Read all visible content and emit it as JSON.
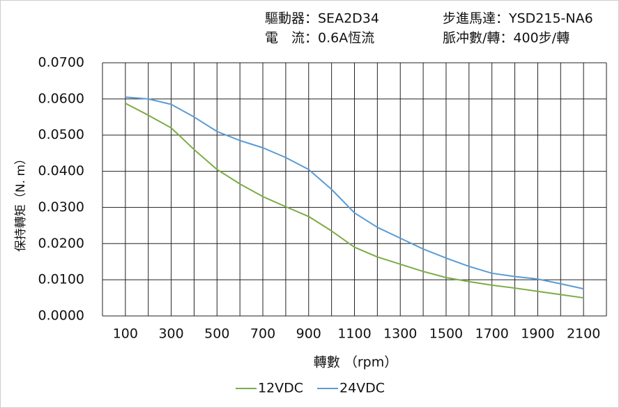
{
  "chart_data": {
    "type": "line",
    "annotations": [
      "驅動器：SEA2D34",
      "步進馬達：YSD215-NA6",
      "電　流：0.6A恆流",
      "脈冲數/轉：400步/轉"
    ],
    "x_label": "轉數 （rpm）",
    "y_label": "保持轉矩（N. m）",
    "x": [
      100,
      200,
      300,
      400,
      500,
      600,
      700,
      800,
      900,
      1000,
      1100,
      1200,
      1300,
      1400,
      1500,
      1600,
      1700,
      1800,
      1900,
      2000,
      2100
    ],
    "series": [
      {
        "name": "12VDC",
        "color": "#7cac45",
        "values": [
          0.0588,
          0.0555,
          0.052,
          0.046,
          0.0405,
          0.0365,
          0.033,
          0.0302,
          0.0275,
          0.0235,
          0.019,
          0.0163,
          0.0143,
          0.0123,
          0.0106,
          0.0095,
          0.0085,
          0.0077,
          0.0068,
          0.0059,
          0.005
        ]
      },
      {
        "name": "24VDC",
        "color": "#5b9bd5",
        "values": [
          0.0605,
          0.06,
          0.0585,
          0.055,
          0.051,
          0.0485,
          0.0465,
          0.0438,
          0.0405,
          0.035,
          0.0285,
          0.0245,
          0.0215,
          0.0185,
          0.016,
          0.0137,
          0.0118,
          0.0109,
          0.0102,
          0.0089,
          0.0075
        ]
      }
    ],
    "xlim": [
      0,
      2200
    ],
    "xticks": [
      100,
      300,
      500,
      700,
      900,
      1100,
      1300,
      1500,
      1700,
      1900,
      2100
    ],
    "xgrid_step": 100,
    "ylim": [
      0,
      0.07
    ],
    "yticks": [
      {
        "value": 0,
        "label": "0.0000"
      },
      {
        "value": 0.01,
        "label": "0.0100"
      },
      {
        "value": 0.02,
        "label": "0.0200"
      },
      {
        "value": 0.03,
        "label": "0.0300"
      },
      {
        "value": 0.04,
        "label": "0.0400"
      },
      {
        "value": 0.05,
        "label": "0.0500"
      },
      {
        "value": 0.06,
        "label": "0.0600"
      },
      {
        "value": 0.07,
        "label": "0.0700"
      }
    ],
    "grid": true,
    "legend": "bottom"
  }
}
